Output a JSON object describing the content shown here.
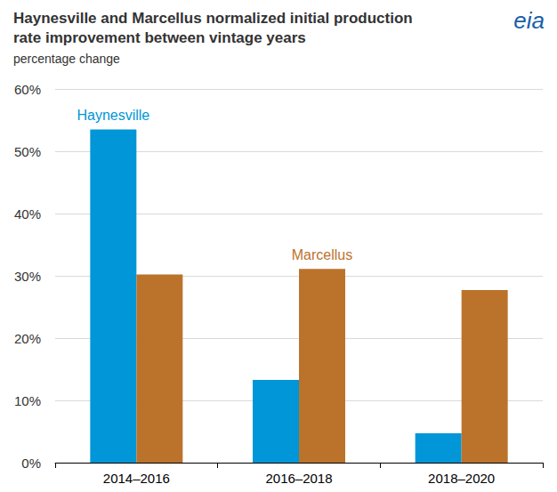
{
  "chart_data": {
    "type": "bar",
    "title": "Haynesville and Marcellus normalized initial production\nrate improvement between vintage years",
    "subtitle": "percentage change",
    "annotations": [
      "eia"
    ],
    "categories": [
      "2014–2016",
      "2016–2018",
      "2018–2020"
    ],
    "series": [
      {
        "name": "Haynesville",
        "color": "#0096d7",
        "values": [
          53.5,
          13.3,
          4.7
        ]
      },
      {
        "name": "Marcellus",
        "color": "#bb732c",
        "values": [
          30.2,
          31.1,
          27.7
        ]
      }
    ],
    "ylim": [
      0,
      60
    ],
    "yticks": [
      {
        "value": 0,
        "label": "0%"
      },
      {
        "value": 10,
        "label": "10%"
      },
      {
        "value": 20,
        "label": "20%"
      },
      {
        "value": 30,
        "label": "30%"
      },
      {
        "value": 40,
        "label": "40%"
      },
      {
        "value": 50,
        "label": "50%"
      },
      {
        "value": 60,
        "label": "60%"
      }
    ],
    "grid": true
  }
}
